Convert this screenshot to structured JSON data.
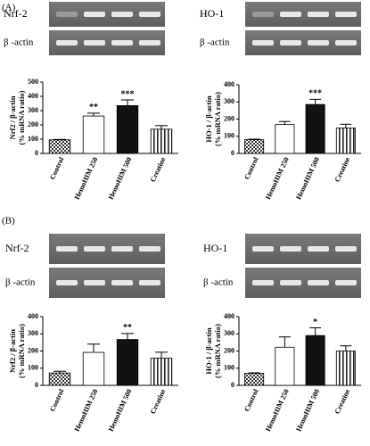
{
  "panel_labels": [
    "(A)",
    "(B)"
  ],
  "gel_labels": [
    [
      "Nrf-2",
      "β -actin"
    ],
    [
      "HO-1",
      "β -actin"
    ],
    [
      "Nrf-2",
      "β -actin"
    ],
    [
      "HO-1",
      "β -actin"
    ]
  ],
  "chart_data": [
    {
      "type": "bar",
      "ylabel": [
        "Nrf2 / β-actin",
        "(% mRNA ratio)"
      ],
      "categories": [
        "Control",
        "HemoHIM 250",
        "HemoHIM 500",
        "Creatine"
      ],
      "values": [
        95,
        262,
        335,
        170
      ],
      "errors": [
        3,
        20,
        40,
        25
      ],
      "annotations": [
        null,
        "**",
        "***",
        null
      ],
      "patterns": [
        "checker",
        "white",
        "black",
        "stripes"
      ],
      "ylim": [
        0,
        500
      ],
      "yticks": [
        0,
        100,
        200,
        300,
        400,
        500
      ]
    },
    {
      "type": "bar",
      "ylabel": [
        "HO-1 / β-actin",
        "(% mRNA ratio)"
      ],
      "categories": [
        "Control",
        "HemoHIM 250",
        "HemoHIM 500",
        "Creatine"
      ],
      "values": [
        80,
        168,
        285,
        148
      ],
      "errors": [
        3,
        18,
        30,
        22
      ],
      "annotations": [
        null,
        null,
        "***",
        null
      ],
      "patterns": [
        "checker",
        "white",
        "black",
        "stripes"
      ],
      "ylim": [
        0,
        400
      ],
      "yticks": [
        0,
        100,
        200,
        300,
        400
      ]
    },
    {
      "type": "bar",
      "ylabel": [
        "Nrf2 / β-actin",
        "(% mRNA ratio)"
      ],
      "categories": [
        "Control",
        "HemoHIM 250",
        "HemoHIM 500",
        "Creatine"
      ],
      "values": [
        72,
        192,
        267,
        158
      ],
      "errors": [
        10,
        48,
        35,
        35
      ],
      "annotations": [
        null,
        null,
        "**",
        null
      ],
      "patterns": [
        "checker",
        "white",
        "black",
        "stripes"
      ],
      "ylim": [
        0,
        400
      ],
      "yticks": [
        0,
        100,
        200,
        300,
        400
      ]
    },
    {
      "type": "bar",
      "ylabel": [
        "HO-1 / β-actin",
        "(% mRNA ratio)"
      ],
      "categories": [
        "Control",
        "HemoHIM 250",
        "HemoHIM 500",
        "Creatine"
      ],
      "values": [
        70,
        222,
        290,
        200
      ],
      "errors": [
        3,
        60,
        45,
        30
      ],
      "annotations": [
        null,
        null,
        "*",
        null
      ],
      "patterns": [
        "checker",
        "white",
        "black",
        "stripes"
      ],
      "ylim": [
        0,
        400
      ],
      "yticks": [
        0,
        100,
        200,
        300,
        400
      ]
    }
  ]
}
